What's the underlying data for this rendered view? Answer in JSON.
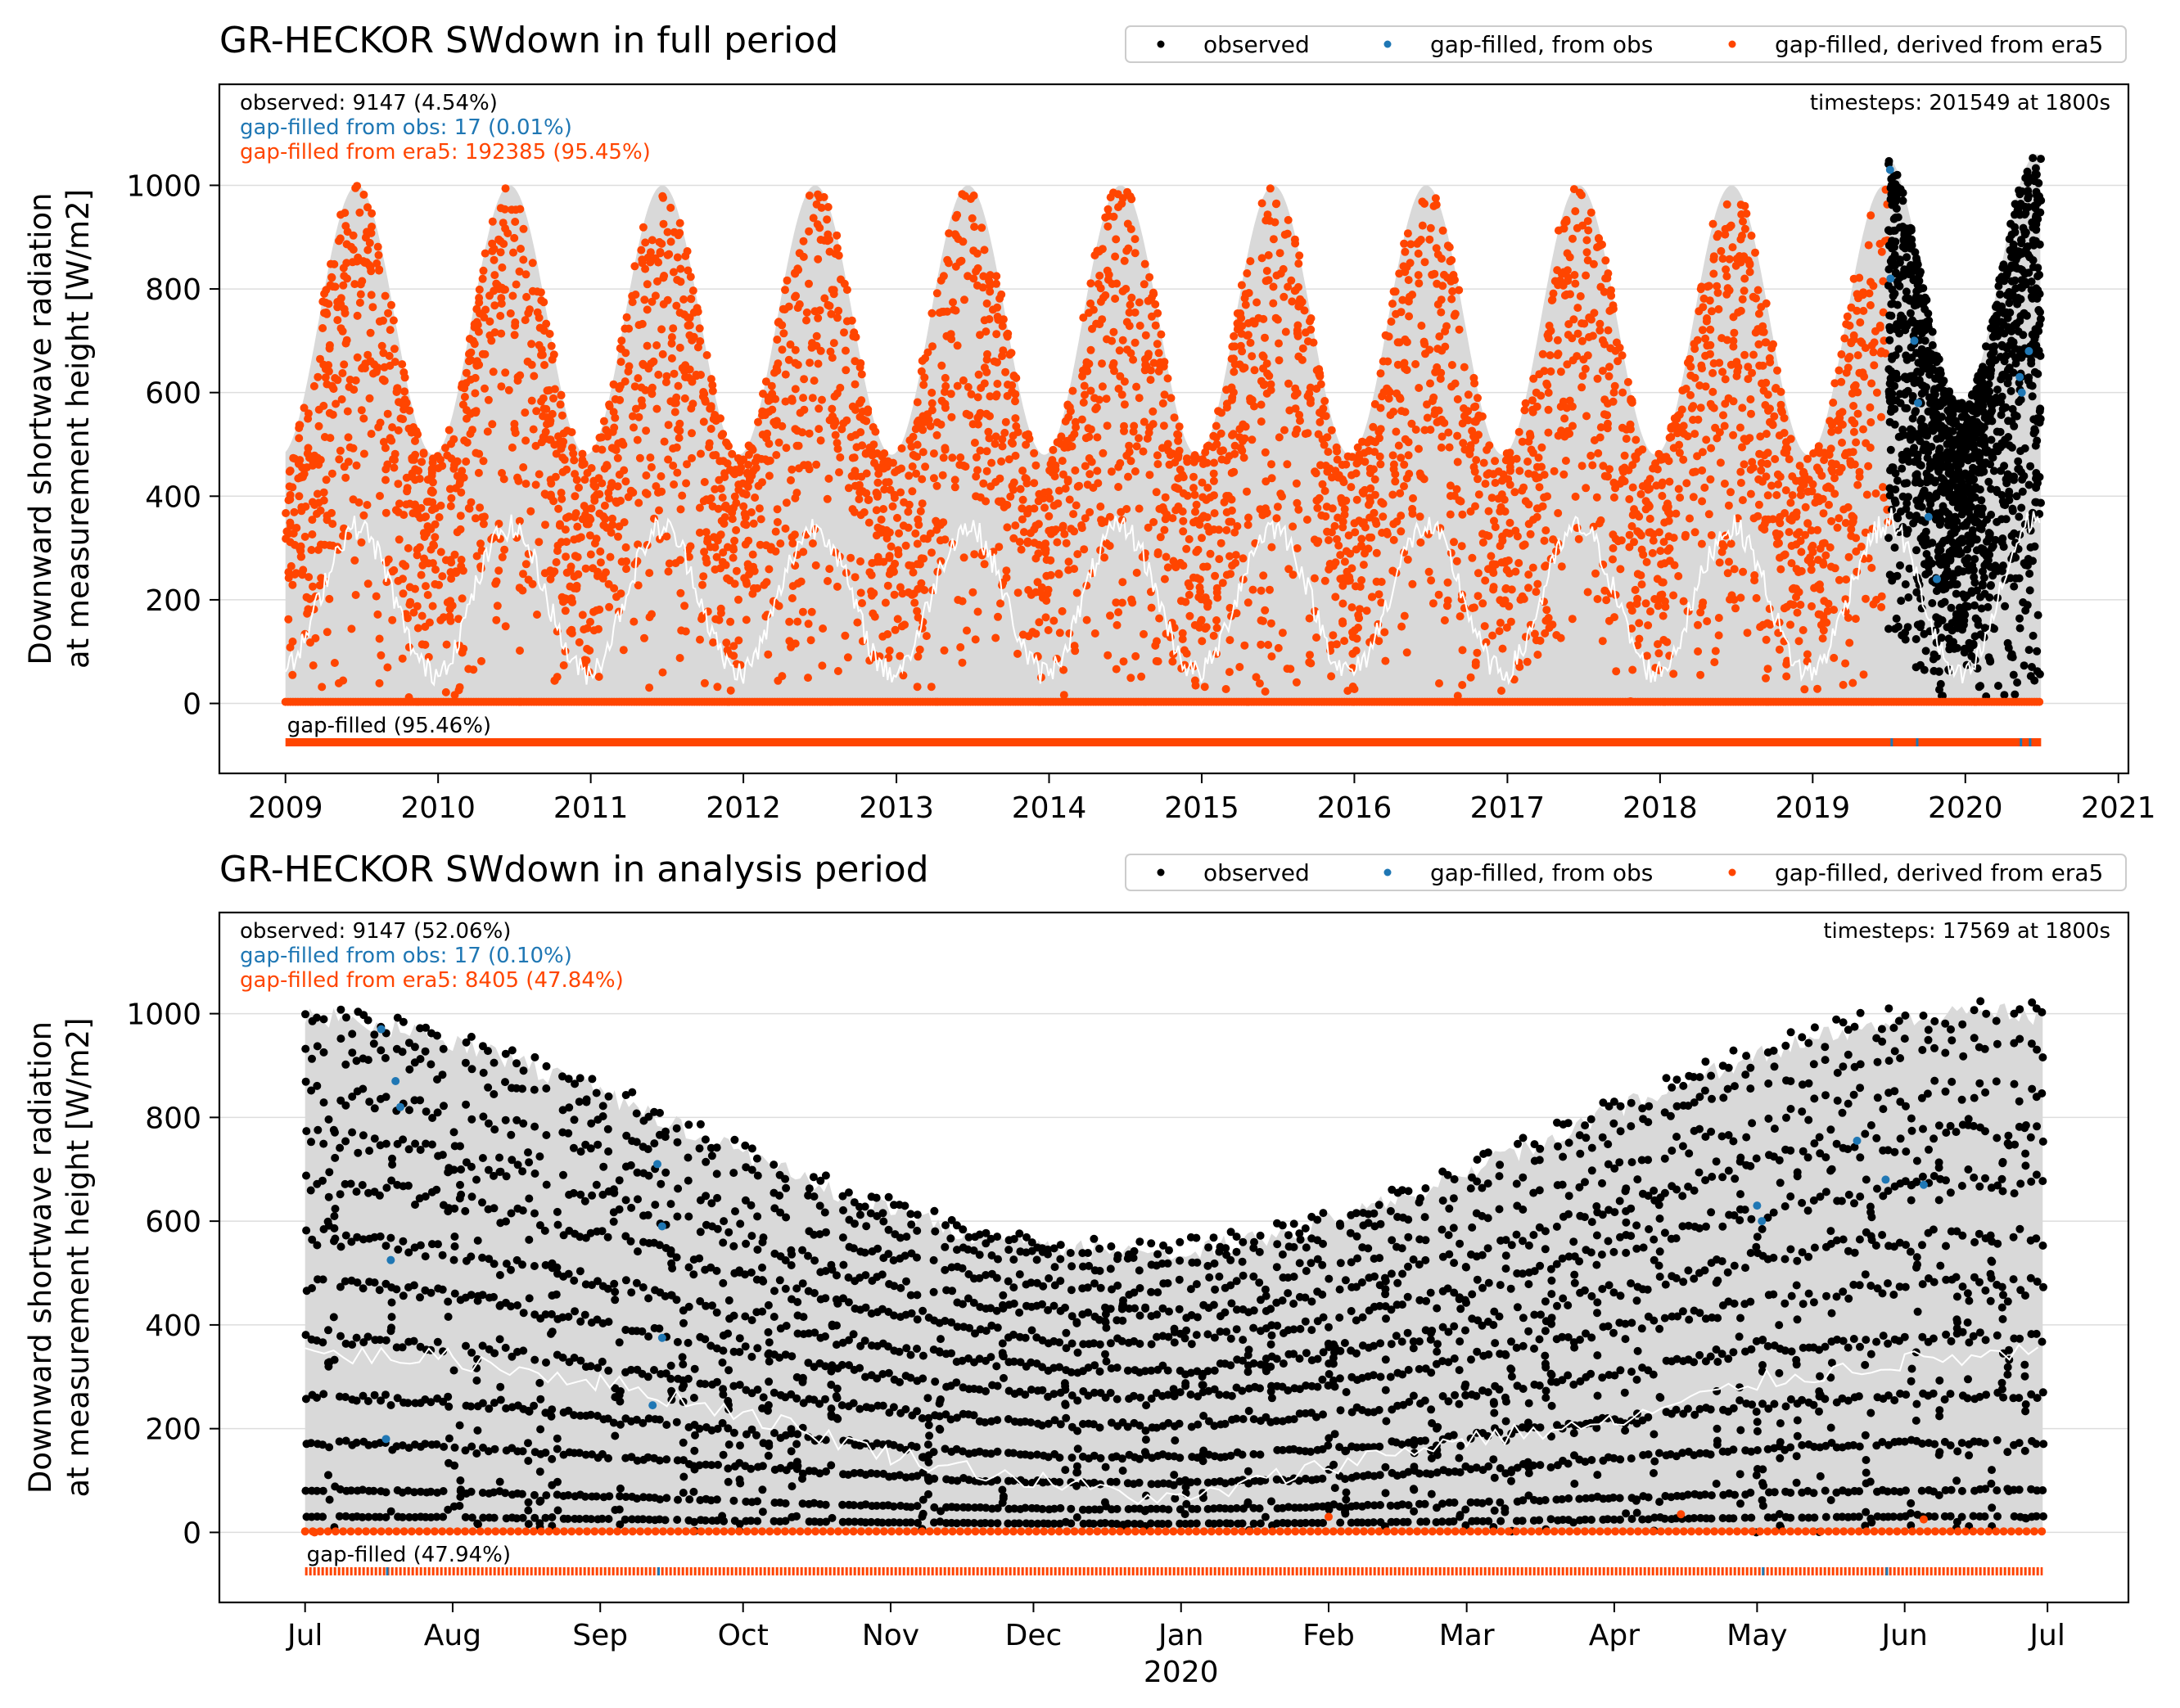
{
  "colors": {
    "observed": "#000000",
    "gap_obs": "#1f77b4",
    "gap_era5": "#ff4500",
    "envelope": "#d9d9d9",
    "mean_line": "#ffffff",
    "grid": "#dddddd"
  },
  "legend": {
    "observed": "observed",
    "gap_obs": "gap-filled, from obs",
    "gap_era5": "gap-filled, derived from era5"
  },
  "chart_data": [
    {
      "type": "scatter",
      "title": "GR-HECKOR SWdown in full period",
      "ylabel": "Downward shortwave radiation\nat measurement height [W/m2]",
      "xlabel": "",
      "ylim": [
        -135,
        1195
      ],
      "yticks": [
        0,
        200,
        400,
        600,
        800,
        1000
      ],
      "xlim": [
        "2008-07-27",
        "2021-01-25"
      ],
      "xticks": [
        "2009",
        "2010",
        "2011",
        "2012",
        "2013",
        "2014",
        "2015",
        "2016",
        "2017",
        "2018",
        "2019",
        "2020",
        "2021"
      ],
      "grid": "horizontal",
      "legend_position": "top-right, above plot",
      "stats": {
        "observed": "observed: 9147 (4.54%)",
        "gap_obs": "gap-filled from obs: 17 (0.01%)",
        "gap_era5": "gap-filled from era5: 192385 (95.45%)",
        "timesteps": "timesteps: 201549 at 1800s",
        "gapfilled": "gap-filled (95.46%)"
      },
      "series": [
        {
          "name": "gap-filled, derived from era5",
          "period": [
            "2009-01-01",
            "2019-07-01"
          ],
          "daily_max_peak": 1000,
          "daily_max_winter": 480,
          "mean_peak": 340,
          "mean_winter": 60
        },
        {
          "name": "observed",
          "period": [
            "2019-07-01",
            "2020-06-30"
          ],
          "daily_max_peak": 1060,
          "daily_max_winter": 580,
          "mean_peak": 360,
          "mean_winter": 50
        },
        {
          "name": "gap-filled, from obs",
          "points": [
            [
              "2019-07-05",
              1030
            ],
            [
              "2019-07-06",
              820
            ],
            [
              "2019-09-01",
              700
            ],
            [
              "2019-09-10",
              580
            ],
            [
              "2019-10-05",
              360
            ],
            [
              "2019-10-25",
              240
            ],
            [
              "2020-05-10",
              630
            ],
            [
              "2020-05-15",
              600
            ],
            [
              "2020-06-01",
              680
            ]
          ]
        }
      ]
    },
    {
      "type": "scatter",
      "title": "GR-HECKOR SWdown in analysis period",
      "ylabel": "Downward shortwave radiation\nat measurement height [W/m2]",
      "xlabel": "2020",
      "ylim": [
        -135,
        1195
      ],
      "yticks": [
        0,
        200,
        400,
        600,
        800,
        1000
      ],
      "xlim": [
        "2019-06-13",
        "2020-07-18"
      ],
      "xticks": [
        "Jul",
        "Aug",
        "Sep",
        "Oct",
        "Nov",
        "Dec",
        "Jan",
        "Feb",
        "Mar",
        "Apr",
        "May",
        "Jun",
        "Jul"
      ],
      "xtick_dates": [
        "2019-07-01",
        "2019-08-01",
        "2019-09-01",
        "2019-10-01",
        "2019-11-01",
        "2019-12-01",
        "2020-01-01",
        "2020-02-01",
        "2020-03-01",
        "2020-04-01",
        "2020-05-01",
        "2020-06-01",
        "2020-07-01"
      ],
      "grid": "horizontal",
      "legend_position": "top-right, above plot",
      "stats": {
        "observed": "observed: 9147 (52.06%)",
        "gap_obs": "gap-filled from obs: 17 (0.10%)",
        "gap_era5": "gap-filled from era5: 8405 (47.84%)",
        "timesteps": "timesteps: 17569 at 1800s",
        "gapfilled": "gap-filled (47.94%)"
      },
      "series": [
        {
          "name": "observed",
          "daily_max_jul": 1020,
          "daily_max_jan": 560,
          "mean": [
            [
              "2019-07-01",
              345
            ],
            [
              "2019-08-01",
              335
            ],
            [
              "2019-09-01",
              290
            ],
            [
              "2019-10-01",
              230
            ],
            [
              "2019-11-01",
              150
            ],
            [
              "2019-12-01",
              100
            ],
            [
              "2020-01-01",
              60
            ],
            [
              "2020-02-01",
              130
            ],
            [
              "2020-03-01",
              180
            ],
            [
              "2020-04-01",
              210
            ],
            [
              "2020-05-01",
              290
            ],
            [
              "2020-06-01",
              330
            ],
            [
              "2020-06-30",
              345
            ]
          ]
        },
        {
          "name": "gap-filled, from obs",
          "points": [
            [
              "2019-07-17",
              970
            ],
            [
              "2019-07-20",
              870
            ],
            [
              "2019-07-21",
              820
            ],
            [
              "2019-07-19",
              525
            ],
            [
              "2019-07-18",
              180
            ],
            [
              "2019-09-13",
              710
            ],
            [
              "2019-09-14",
              590
            ],
            [
              "2019-09-14",
              375
            ],
            [
              "2019-09-12",
              245
            ],
            [
              "2020-05-01",
              630
            ],
            [
              "2020-05-02",
              600
            ],
            [
              "2020-05-22",
              755
            ],
            [
              "2020-05-28",
              680
            ],
            [
              "2020-06-05",
              670
            ]
          ]
        },
        {
          "name": "gap-filled, derived from era5",
          "points_note": "night values near 0",
          "points": [
            [
              "2019-07-03",
              0
            ],
            [
              "2020-02-01",
              30
            ],
            [
              "2020-04-15",
              35
            ],
            [
              "2020-06-05",
              25
            ]
          ]
        }
      ]
    }
  ]
}
